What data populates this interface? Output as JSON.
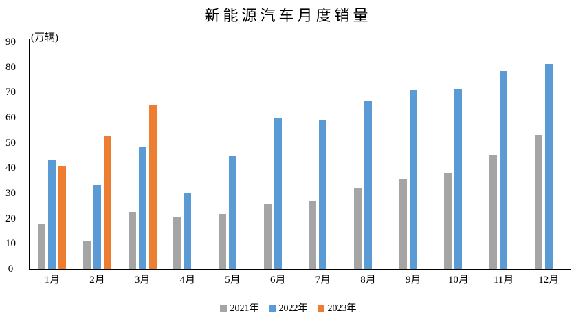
{
  "chart_data": {
    "type": "bar",
    "title": "新能源汽车月度销量",
    "ylabel": "(万辆)",
    "xlabel": "",
    "categories": [
      "1月",
      "2月",
      "3月",
      "4月",
      "5月",
      "6月",
      "7月",
      "8月",
      "9月",
      "10月",
      "11月",
      "12月"
    ],
    "series": [
      {
        "name": "2021年",
        "color": "#A5A5A5",
        "values": [
          17.9,
          11.0,
          22.6,
          20.6,
          21.7,
          25.6,
          27.1,
          32.1,
          35.7,
          38.3,
          45.0,
          53.1
        ]
      },
      {
        "name": "2022年",
        "color": "#5B9BD5",
        "values": [
          43.1,
          33.4,
          48.4,
          29.9,
          44.7,
          59.6,
          59.3,
          66.6,
          70.8,
          71.4,
          78.6,
          81.4
        ]
      },
      {
        "name": "2023年",
        "color": "#ED7D31",
        "values": [
          40.8,
          52.5,
          65.3,
          null,
          null,
          null,
          null,
          null,
          null,
          null,
          null,
          null
        ]
      }
    ],
    "ylim": [
      0,
      90
    ],
    "ytick_step": 10,
    "grid": false,
    "legend_position": "bottom",
    "axis_color": "#000000",
    "background_color": "#FFFFFF"
  }
}
